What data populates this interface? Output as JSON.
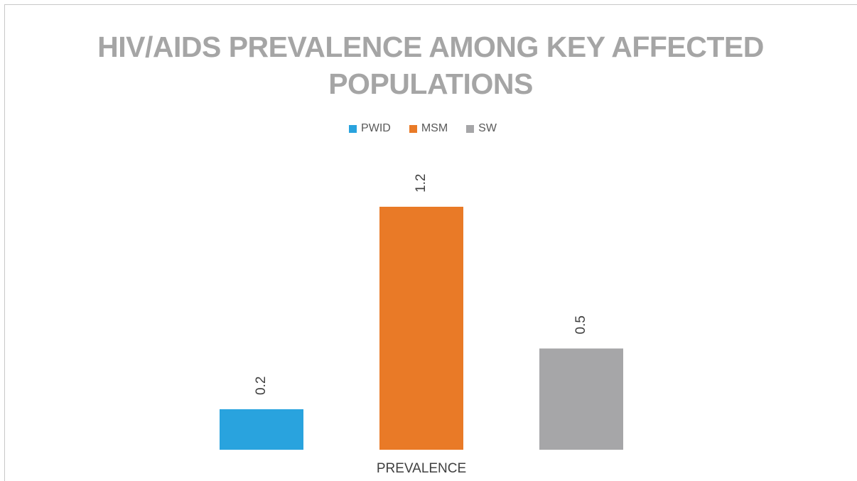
{
  "chart_data": {
    "type": "bar",
    "title": "HIV/AIDS PREVALENCE AMONG KEY AFFECTED POPULATIONS",
    "categories": [
      "PREVALENCE"
    ],
    "series": [
      {
        "name": "PWID",
        "values": [
          0.2
        ],
        "color": "#29a3de"
      },
      {
        "name": "MSM",
        "values": [
          1.2
        ],
        "color": "#e97a27"
      },
      {
        "name": "SW",
        "values": [
          0.5
        ],
        "color": "#a6a6a8"
      }
    ],
    "data_labels": [
      "0.2",
      "1.2",
      "0.5"
    ],
    "xlabel": "PREVALENCE",
    "ylabel": "",
    "ylim": [
      0,
      1.4
    ],
    "grid": false,
    "legend": "top"
  }
}
